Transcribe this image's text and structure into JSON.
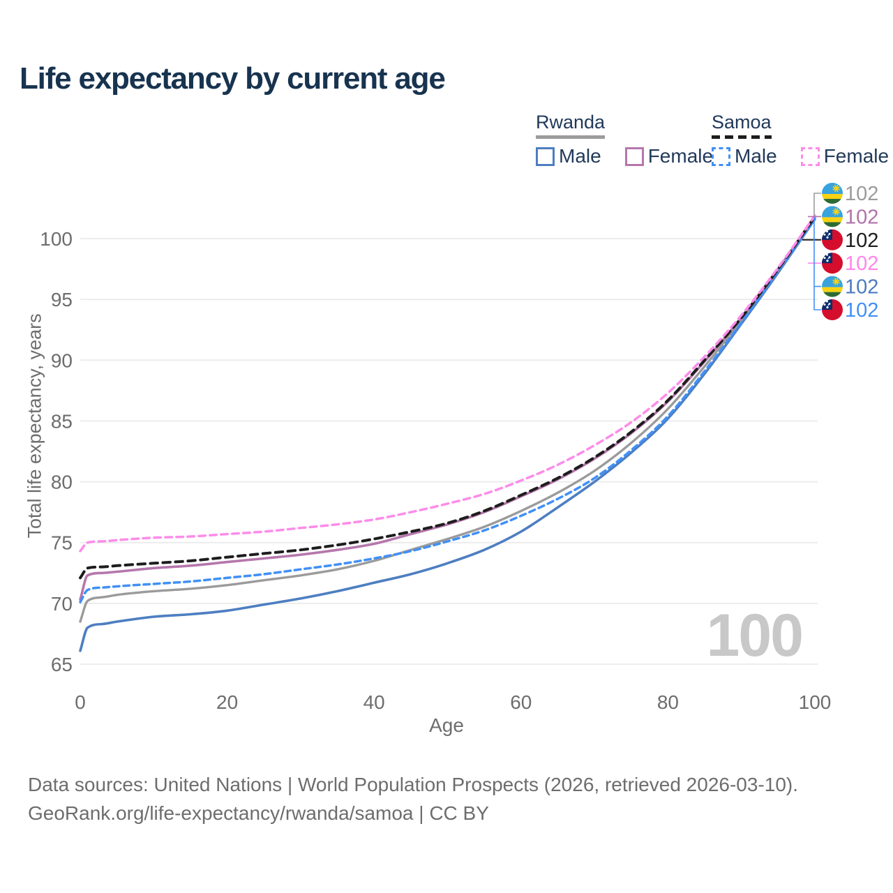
{
  "title": "Life expectancy by current age",
  "watermark_age": "100",
  "legend": {
    "groups": [
      {
        "country": "Rwanda",
        "line_style": "solid",
        "line_color": "#9b9b9b",
        "items": [
          {
            "label": "Male",
            "color": "#4d7ec1",
            "dash": false
          },
          {
            "label": "Female",
            "color": "#b577ac",
            "dash": false
          }
        ]
      },
      {
        "country": "Samoa",
        "line_style": "dashed",
        "line_color": "#1d1d1d",
        "items": [
          {
            "label": "Male",
            "color": "#4190f5",
            "dash": true
          },
          {
            "label": "Female",
            "color": "#fc8cea",
            "dash": true
          }
        ]
      }
    ]
  },
  "chart_data": {
    "type": "line",
    "title": "Life expectancy by current age",
    "xlabel": "Age",
    "ylabel": "Total life expectancy, years",
    "xlim": [
      0,
      100
    ],
    "ylim": [
      65,
      100
    ],
    "xticks": [
      0,
      20,
      40,
      60,
      80,
      100
    ],
    "yticks": [
      65,
      70,
      75,
      80,
      85,
      90,
      95,
      100
    ],
    "grid": "horizontal-only",
    "legend_position": "top-right",
    "ages": [
      0,
      1,
      3,
      5,
      10,
      15,
      20,
      25,
      30,
      35,
      40,
      45,
      50,
      55,
      60,
      65,
      70,
      75,
      80,
      85,
      90,
      95,
      100
    ],
    "series": [
      {
        "key": "rwanda-male",
        "country": "Rwanda",
        "name": "Rwanda Male",
        "color": "#4d7ec1",
        "dash": null,
        "width": 3.6,
        "values": [
          66.1,
          68.0,
          68.3,
          68.5,
          68.9,
          69.1,
          69.4,
          69.9,
          70.4,
          71.0,
          71.7,
          72.4,
          73.3,
          74.4,
          75.9,
          77.9,
          80.0,
          82.4,
          85.2,
          88.9,
          93.0,
          97.2,
          101.6
        ]
      },
      {
        "key": "rwanda-all",
        "country": "Rwanda",
        "name": "Rwanda (all)",
        "color": "#9b9b9b",
        "dash": null,
        "width": 3.4,
        "values": [
          68.5,
          70.2,
          70.5,
          70.7,
          71.0,
          71.2,
          71.5,
          71.9,
          72.3,
          72.8,
          73.5,
          74.4,
          75.3,
          76.3,
          77.6,
          79.1,
          80.9,
          83.2,
          86.0,
          89.5,
          93.3,
          97.4,
          101.7
        ]
      },
      {
        "key": "rwanda-female",
        "country": "Rwanda",
        "name": "Rwanda Female",
        "color": "#b577ac",
        "dash": null,
        "width": 3.6,
        "values": [
          70.3,
          72.3,
          72.5,
          72.6,
          72.9,
          73.1,
          73.4,
          73.7,
          74.0,
          74.4,
          74.9,
          75.7,
          76.5,
          77.5,
          78.8,
          80.2,
          81.9,
          84.0,
          86.6,
          89.9,
          93.5,
          97.5,
          101.8
        ]
      },
      {
        "key": "samoa-male",
        "country": "Samoa",
        "name": "Samoa Male",
        "color": "#4190f5",
        "dash": "8.5 6",
        "width": 3.5,
        "values": [
          70.1,
          71.1,
          71.3,
          71.4,
          71.6,
          71.8,
          72.1,
          72.4,
          72.8,
          73.2,
          73.7,
          74.3,
          75.1,
          76.0,
          77.2,
          78.6,
          80.3,
          82.6,
          85.4,
          89.1,
          93.1,
          97.3,
          101.6
        ]
      },
      {
        "key": "samoa-all",
        "country": "Samoa",
        "name": "Samoa (all)",
        "color": "#1d1d1d",
        "dash": "10.5 7.5",
        "width": 4,
        "values": [
          72.1,
          72.9,
          73.0,
          73.1,
          73.3,
          73.5,
          73.8,
          74.1,
          74.4,
          74.8,
          75.3,
          75.9,
          76.6,
          77.6,
          78.9,
          80.3,
          82.0,
          84.1,
          86.7,
          90.0,
          93.5,
          97.5,
          101.8
        ]
      },
      {
        "key": "samoa-female",
        "country": "Samoa",
        "name": "Samoa Female",
        "color": "#fc8cea",
        "dash": "9.5 6.5",
        "width": 3.5,
        "values": [
          74.3,
          75.0,
          75.1,
          75.2,
          75.4,
          75.5,
          75.7,
          75.9,
          76.2,
          76.5,
          76.9,
          77.5,
          78.2,
          79.0,
          80.1,
          81.4,
          83.0,
          84.9,
          87.3,
          90.3,
          93.7,
          97.6,
          101.9
        ]
      }
    ],
    "end_labels": [
      {
        "series_key": "rwanda-all",
        "flag": "rwanda",
        "text": "102",
        "color": "#9b9b9b"
      },
      {
        "series_key": "rwanda-female",
        "flag": "rwanda",
        "text": "102",
        "color": "#b073a9"
      },
      {
        "series_key": "samoa-all",
        "flag": "samoa",
        "text": "102",
        "color": "#1d1d1d"
      },
      {
        "series_key": "samoa-female",
        "flag": "samoa",
        "text": "102",
        "color": "#ff87e9"
      },
      {
        "series_key": "rwanda-male",
        "flag": "rwanda",
        "text": "102",
        "color": "#4c7cc0"
      },
      {
        "series_key": "samoa-male",
        "flag": "samoa",
        "text": "102",
        "color": "#4190f5"
      }
    ]
  },
  "flag_colors": {
    "rwanda": {
      "blue": "#38a3dd",
      "yellow": "#f8d313",
      "green": "#2d6b34",
      "sun": "#f8d313"
    },
    "samoa": {
      "red": "#d40e2c",
      "blue": "#0b2d6b",
      "star": "#ffffff"
    }
  },
  "footer": {
    "line1": "Data sources: United Nations | World Population Prospects (2026, retrieved 2026-03-10).",
    "line2": "GeoRank.org/life-expectancy/rwanda/samoa | CC BY"
  }
}
